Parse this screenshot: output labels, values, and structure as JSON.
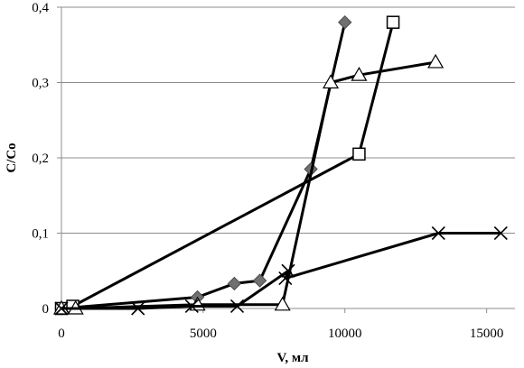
{
  "chart_data": {
    "type": "scatter",
    "xlabel": "V, мл",
    "ylabel": "C/Co",
    "xlim": [
      0,
      16000
    ],
    "ylim": [
      0,
      0.4
    ],
    "x_ticks": [
      0,
      5000,
      10000,
      15000
    ],
    "x_tick_labels": [
      "0",
      "5000",
      "10000",
      "15000"
    ],
    "y_ticks": [
      0,
      0.1,
      0.2,
      0.3,
      0.4
    ],
    "y_tick_labels": [
      "0",
      "0,1",
      "0,2",
      "0,3",
      "0,4"
    ],
    "grid": "horizontal",
    "legend": "none",
    "series": [
      {
        "marker": "diamond",
        "color": "#707070",
        "points": [
          [
            0,
            0
          ],
          [
            4800,
            0.015
          ],
          [
            6100,
            0.033
          ],
          [
            7000,
            0.037
          ],
          [
            8800,
            0.185
          ],
          [
            10000,
            0.38
          ]
        ]
      },
      {
        "marker": "square",
        "color": "#ffffff",
        "points": [
          [
            0,
            0
          ],
          [
            400,
            0.003
          ],
          [
            10500,
            0.205
          ],
          [
            11700,
            0.38
          ]
        ]
      },
      {
        "marker": "triangle",
        "color": "#ffffff",
        "points": [
          [
            0,
            0
          ],
          [
            500,
            0
          ],
          [
            4800,
            0.005
          ],
          [
            7800,
            0.005
          ],
          [
            9500,
            0.3
          ],
          [
            10500,
            0.31
          ],
          [
            13200,
            0.327
          ]
        ]
      },
      {
        "marker": "x",
        "color": "#000000",
        "points": [
          [
            0,
            0
          ],
          [
            2700,
            0
          ],
          [
            4600,
            0.003
          ],
          [
            6200,
            0.003
          ],
          [
            8000,
            0.05
          ],
          [
            7900,
            0.04
          ],
          [
            13300,
            0.1
          ],
          [
            15500,
            0.1
          ]
        ]
      }
    ]
  }
}
